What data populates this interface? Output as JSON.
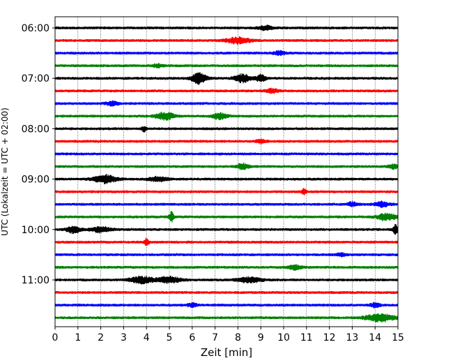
{
  "chart_data": {
    "type": "line",
    "subtype": "seismic-helicorder",
    "xlabel": "Zeit  [min]",
    "ylabel": "UTC (Lokalzeit = UTC + 02:00)",
    "xlim": [
      0,
      15
    ],
    "xticks": [
      0,
      1,
      2,
      3,
      4,
      5,
      6,
      7,
      8,
      9,
      10,
      11,
      12,
      13,
      14,
      15
    ],
    "x_grid": true,
    "trace_interval_minutes": 15,
    "trace_colors": [
      "#000000",
      "#ff0000",
      "#0000ff",
      "#008000"
    ],
    "y_ticks": [
      {
        "label": "06:00",
        "trace_index": 0
      },
      {
        "label": "07:00",
        "trace_index": 4
      },
      {
        "label": "08:00",
        "trace_index": 8
      },
      {
        "label": "09:00",
        "trace_index": 12
      },
      {
        "label": "10:00",
        "trace_index": 16
      },
      {
        "label": "11:00",
        "trace_index": 20
      }
    ],
    "traces": [
      {
        "start": "06:00",
        "color": "#000000",
        "events": [
          {
            "t": 9.2,
            "amp": 0.6,
            "dur": 0.6
          }
        ]
      },
      {
        "start": "06:15",
        "color": "#ff0000",
        "events": [
          {
            "t": 8.0,
            "amp": 0.9,
            "dur": 1.0
          }
        ]
      },
      {
        "start": "06:30",
        "color": "#0000ff",
        "events": [
          {
            "t": 9.8,
            "amp": 0.5,
            "dur": 0.5
          }
        ]
      },
      {
        "start": "06:45",
        "color": "#008000",
        "events": [
          {
            "t": 4.5,
            "amp": 0.4,
            "dur": 0.4
          }
        ]
      },
      {
        "start": "07:00",
        "color": "#000000",
        "events": [
          {
            "t": 6.3,
            "amp": 1.6,
            "dur": 0.6
          },
          {
            "t": 8.2,
            "amp": 1.1,
            "dur": 0.7
          },
          {
            "t": 9.0,
            "amp": 1.0,
            "dur": 0.4
          }
        ]
      },
      {
        "start": "07:15",
        "color": "#ff0000",
        "events": [
          {
            "t": 9.5,
            "amp": 0.6,
            "dur": 0.5
          }
        ]
      },
      {
        "start": "07:30",
        "color": "#0000ff",
        "events": [
          {
            "t": 2.5,
            "amp": 0.6,
            "dur": 0.5
          }
        ]
      },
      {
        "start": "07:45",
        "color": "#008000",
        "events": [
          {
            "t": 4.8,
            "amp": 1.0,
            "dur": 0.8
          },
          {
            "t": 7.2,
            "amp": 0.8,
            "dur": 0.6
          }
        ]
      },
      {
        "start": "08:00",
        "color": "#000000",
        "events": [
          {
            "t": 3.9,
            "amp": 0.7,
            "dur": 0.2
          }
        ]
      },
      {
        "start": "08:15",
        "color": "#ff0000",
        "events": [
          {
            "t": 9.0,
            "amp": 0.5,
            "dur": 0.4
          }
        ]
      },
      {
        "start": "08:30",
        "color": "#0000ff",
        "events": []
      },
      {
        "start": "08:45",
        "color": "#008000",
        "events": [
          {
            "t": 8.2,
            "amp": 0.8,
            "dur": 0.5
          },
          {
            "t": 14.8,
            "amp": 0.6,
            "dur": 0.4
          }
        ]
      },
      {
        "start": "09:00",
        "color": "#000000",
        "events": [
          {
            "t": 2.2,
            "amp": 1.1,
            "dur": 1.0
          },
          {
            "t": 4.5,
            "amp": 0.6,
            "dur": 0.8
          }
        ]
      },
      {
        "start": "09:15",
        "color": "#ff0000",
        "events": [
          {
            "t": 10.9,
            "amp": 0.8,
            "dur": 0.2
          }
        ]
      },
      {
        "start": "09:30",
        "color": "#0000ff",
        "events": [
          {
            "t": 13.0,
            "amp": 0.6,
            "dur": 0.4
          },
          {
            "t": 14.3,
            "amp": 0.7,
            "dur": 0.6
          }
        ]
      },
      {
        "start": "09:45",
        "color": "#008000",
        "events": [
          {
            "t": 5.1,
            "amp": 1.5,
            "dur": 0.2
          },
          {
            "t": 14.5,
            "amp": 0.9,
            "dur": 0.8
          }
        ]
      },
      {
        "start": "10:00",
        "color": "#000000",
        "events": [
          {
            "t": 0.8,
            "amp": 0.9,
            "dur": 0.6
          },
          {
            "t": 2.0,
            "amp": 0.8,
            "dur": 0.8
          },
          {
            "t": 14.9,
            "amp": 1.3,
            "dur": 0.2
          }
        ]
      },
      {
        "start": "10:15",
        "color": "#ff0000",
        "events": [
          {
            "t": 4.0,
            "amp": 1.0,
            "dur": 0.2
          }
        ]
      },
      {
        "start": "10:30",
        "color": "#0000ff",
        "events": [
          {
            "t": 12.5,
            "amp": 0.4,
            "dur": 0.4
          }
        ]
      },
      {
        "start": "10:45",
        "color": "#008000",
        "events": [
          {
            "t": 10.5,
            "amp": 0.6,
            "dur": 0.6
          }
        ]
      },
      {
        "start": "11:00",
        "color": "#000000",
        "events": [
          {
            "t": 3.8,
            "amp": 0.9,
            "dur": 1.0
          },
          {
            "t": 5.0,
            "amp": 0.8,
            "dur": 1.0
          },
          {
            "t": 8.5,
            "amp": 0.7,
            "dur": 1.0
          }
        ]
      },
      {
        "start": "11:15",
        "color": "#ff0000",
        "events": []
      },
      {
        "start": "11:30",
        "color": "#0000ff",
        "events": [
          {
            "t": 6.0,
            "amp": 0.5,
            "dur": 0.4
          },
          {
            "t": 14.0,
            "amp": 0.6,
            "dur": 0.4
          }
        ]
      },
      {
        "start": "11:45",
        "color": "#008000",
        "events": [
          {
            "t": 14.2,
            "amp": 1.1,
            "dur": 1.2
          }
        ]
      }
    ]
  }
}
